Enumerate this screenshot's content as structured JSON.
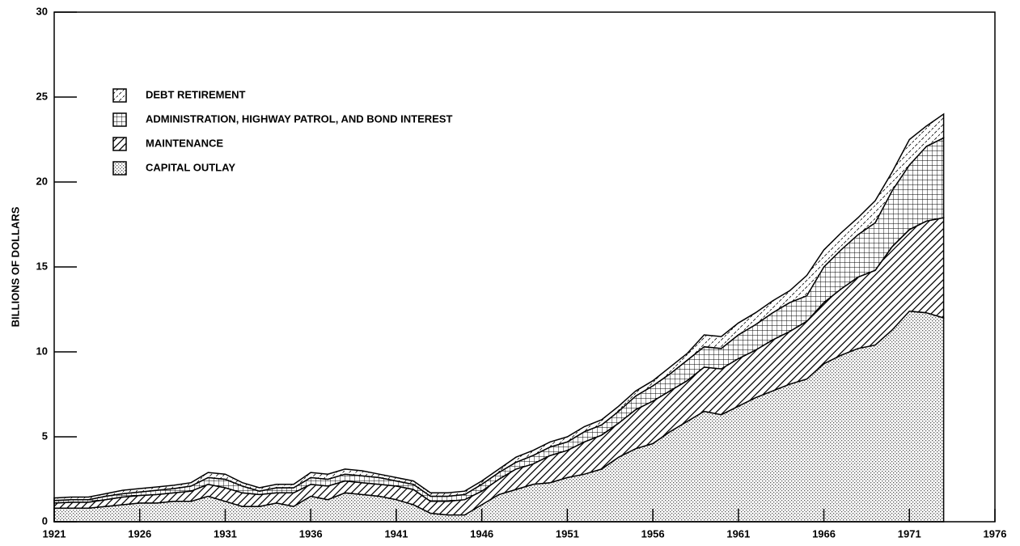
{
  "chart_data": {
    "type": "stacked-area",
    "y_label": "BILLIONS OF DOLLARS",
    "x": [
      1921,
      1922,
      1923,
      1924,
      1925,
      1926,
      1927,
      1928,
      1929,
      1930,
      1931,
      1932,
      1933,
      1934,
      1935,
      1936,
      1937,
      1938,
      1939,
      1940,
      1941,
      1942,
      1943,
      1944,
      1945,
      1946,
      1947,
      1948,
      1949,
      1950,
      1951,
      1952,
      1953,
      1954,
      1955,
      1956,
      1957,
      1958,
      1959,
      1960,
      1961,
      1962,
      1963,
      1964,
      1965,
      1966,
      1967,
      1968,
      1969,
      1970,
      1971,
      1972,
      1973
    ],
    "series": [
      {
        "name": "CAPITAL OUTLAY",
        "color": "#000000",
        "pattern": "dots",
        "values": [
          0.8,
          0.8,
          0.8,
          0.9,
          1.0,
          1.1,
          1.1,
          1.2,
          1.2,
          1.5,
          1.2,
          0.9,
          0.9,
          1.1,
          0.9,
          1.5,
          1.3,
          1.7,
          1.6,
          1.5,
          1.3,
          1.0,
          0.5,
          0.4,
          0.4,
          1.0,
          1.6,
          1.9,
          2.2,
          2.3,
          2.6,
          2.8,
          3.1,
          3.8,
          4.3,
          4.6,
          5.3,
          5.9,
          6.5,
          6.3,
          6.8,
          7.3,
          7.7,
          8.1,
          8.4,
          9.3,
          9.8,
          10.2,
          10.4,
          11.3,
          12.4,
          12.3,
          12.0
        ]
      },
      {
        "name": "MAINTENANCE",
        "color": "#000000",
        "pattern": "hatch",
        "values": [
          0.3,
          0.35,
          0.35,
          0.4,
          0.45,
          0.45,
          0.5,
          0.5,
          0.6,
          0.7,
          0.8,
          0.8,
          0.7,
          0.6,
          0.8,
          0.7,
          0.8,
          0.7,
          0.7,
          0.7,
          0.8,
          0.9,
          0.7,
          0.8,
          0.9,
          0.8,
          0.9,
          1.2,
          1.2,
          1.6,
          1.6,
          1.9,
          2.0,
          2.0,
          2.3,
          2.5,
          2.4,
          2.4,
          2.6,
          2.7,
          2.8,
          2.8,
          3.0,
          3.1,
          3.4,
          3.6,
          3.9,
          4.2,
          4.4,
          4.9,
          4.8,
          5.4,
          5.9
        ]
      },
      {
        "name": "ADMINISTRATION, HIGHWAY PATROL, AND BOND INTEREST",
        "color": "#000000",
        "pattern": "grid",
        "values": [
          0.15,
          0.15,
          0.15,
          0.2,
          0.2,
          0.2,
          0.25,
          0.25,
          0.3,
          0.4,
          0.5,
          0.4,
          0.2,
          0.3,
          0.3,
          0.4,
          0.4,
          0.4,
          0.4,
          0.4,
          0.3,
          0.3,
          0.3,
          0.3,
          0.3,
          0.4,
          0.4,
          0.4,
          0.5,
          0.5,
          0.5,
          0.6,
          0.6,
          0.7,
          0.8,
          0.9,
          1.0,
          1.2,
          1.2,
          1.2,
          1.4,
          1.5,
          1.6,
          1.7,
          1.5,
          2.1,
          2.3,
          2.5,
          2.8,
          3.3,
          3.8,
          4.4,
          4.7
        ]
      },
      {
        "name": "DEBT RETIREMENT",
        "color": "#000000",
        "pattern": "hatch-light",
        "values": [
          0.15,
          0.15,
          0.15,
          0.15,
          0.2,
          0.2,
          0.2,
          0.2,
          0.2,
          0.3,
          0.3,
          0.2,
          0.2,
          0.2,
          0.2,
          0.3,
          0.3,
          0.3,
          0.3,
          0.2,
          0.2,
          0.2,
          0.2,
          0.2,
          0.2,
          0.2,
          0.2,
          0.3,
          0.3,
          0.3,
          0.3,
          0.3,
          0.3,
          0.3,
          0.3,
          0.3,
          0.4,
          0.4,
          0.7,
          0.7,
          0.7,
          0.7,
          0.7,
          0.7,
          1.2,
          1.0,
          1.0,
          1.0,
          1.3,
          1.1,
          1.5,
          1.2,
          1.4
        ]
      }
    ],
    "xlim": [
      1921,
      1976
    ],
    "xticks": [
      1921,
      1926,
      1931,
      1936,
      1941,
      1946,
      1951,
      1956,
      1961,
      1966,
      1971,
      1976
    ],
    "ylim": [
      0,
      30
    ],
    "yticks": [
      0,
      5,
      10,
      15,
      20,
      25,
      30
    ],
    "legend": "upper left"
  }
}
